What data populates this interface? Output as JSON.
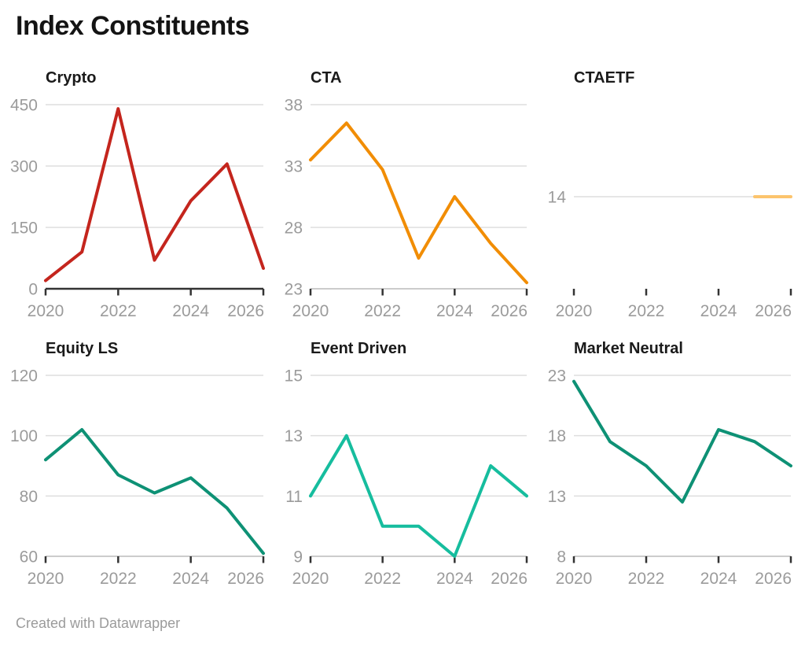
{
  "title": "Index Constituents",
  "footer": {
    "text": "Created with Datawrapper"
  },
  "colors": {
    "crypto": "#c4251d",
    "cta": "#f18d05",
    "ctaetf": "#fcc46d",
    "equity_ls": "#0e9175",
    "event_driven": "#16bd9e",
    "market_neutral": "#0e9175",
    "gridline": "#dedede",
    "axis_light": "#cccccc",
    "axis_dark": "#333333",
    "tick_mark": "#333333",
    "axis_text": "#9b9b9b"
  },
  "chart_data": [
    {
      "type": "line",
      "title": "Crypto",
      "color": "#c4251d",
      "x": [
        2020,
        2021,
        2022,
        2023,
        2024,
        2025,
        2026
      ],
      "values": [
        20,
        90,
        440,
        70,
        215,
        305,
        50
      ],
      "yticks": [
        0,
        150,
        300,
        450
      ],
      "ylim": [
        0,
        450
      ],
      "xticks": [
        2020,
        2022,
        2024,
        2026
      ],
      "baseline": "zero",
      "grid": true,
      "legend": "none"
    },
    {
      "type": "line",
      "title": "CTA",
      "color": "#f18d05",
      "x": [
        2020,
        2021,
        2022,
        2023,
        2024,
        2025,
        2026
      ],
      "values": [
        33.5,
        36.5,
        32.7,
        25.5,
        30.5,
        26.7,
        23.5
      ],
      "yticks": [
        23,
        28,
        33,
        38
      ],
      "ylim": [
        23,
        38
      ],
      "xticks": [
        2020,
        2022,
        2024,
        2026
      ],
      "baseline": "light",
      "grid": true,
      "legend": "none"
    },
    {
      "type": "line",
      "title": "CTAETF",
      "color": "#fcc46d",
      "x": [
        2020,
        2021,
        2022,
        2023,
        2024,
        2025,
        2026
      ],
      "values": [
        null,
        null,
        null,
        null,
        null,
        14,
        14
      ],
      "yticks": [
        14
      ],
      "ylim": [
        8,
        20
      ],
      "xticks": [
        2020,
        2022,
        2024,
        2026
      ],
      "baseline": "none",
      "grid": true,
      "legend": "none"
    },
    {
      "type": "line",
      "title": "Equity LS",
      "color": "#0e9175",
      "x": [
        2020,
        2021,
        2022,
        2023,
        2024,
        2025,
        2026
      ],
      "values": [
        92,
        102,
        87,
        81,
        86,
        76,
        61
      ],
      "yticks": [
        60,
        80,
        100,
        120
      ],
      "ylim": [
        60,
        120
      ],
      "xticks": [
        2020,
        2022,
        2024,
        2026
      ],
      "baseline": "light",
      "grid": true,
      "legend": "none"
    },
    {
      "type": "line",
      "title": "Event Driven",
      "color": "#16bd9e",
      "x": [
        2020,
        2021,
        2022,
        2023,
        2024,
        2025,
        2026
      ],
      "values": [
        11,
        13,
        10,
        10,
        9,
        12,
        11
      ],
      "yticks": [
        9,
        11,
        13,
        15
      ],
      "ylim": [
        9,
        15
      ],
      "xticks": [
        2020,
        2022,
        2024,
        2026
      ],
      "baseline": "light",
      "grid": true,
      "legend": "none"
    },
    {
      "type": "line",
      "title": "Market Neutral",
      "color": "#0e9175",
      "x": [
        2020,
        2021,
        2022,
        2023,
        2024,
        2025,
        2026
      ],
      "values": [
        22.5,
        17.5,
        15.5,
        12.5,
        18.5,
        17.5,
        15.5
      ],
      "yticks": [
        8,
        13,
        18,
        23
      ],
      "ylim": [
        8,
        23
      ],
      "xticks": [
        2020,
        2022,
        2024,
        2026
      ],
      "baseline": "light",
      "grid": true,
      "legend": "none"
    }
  ]
}
